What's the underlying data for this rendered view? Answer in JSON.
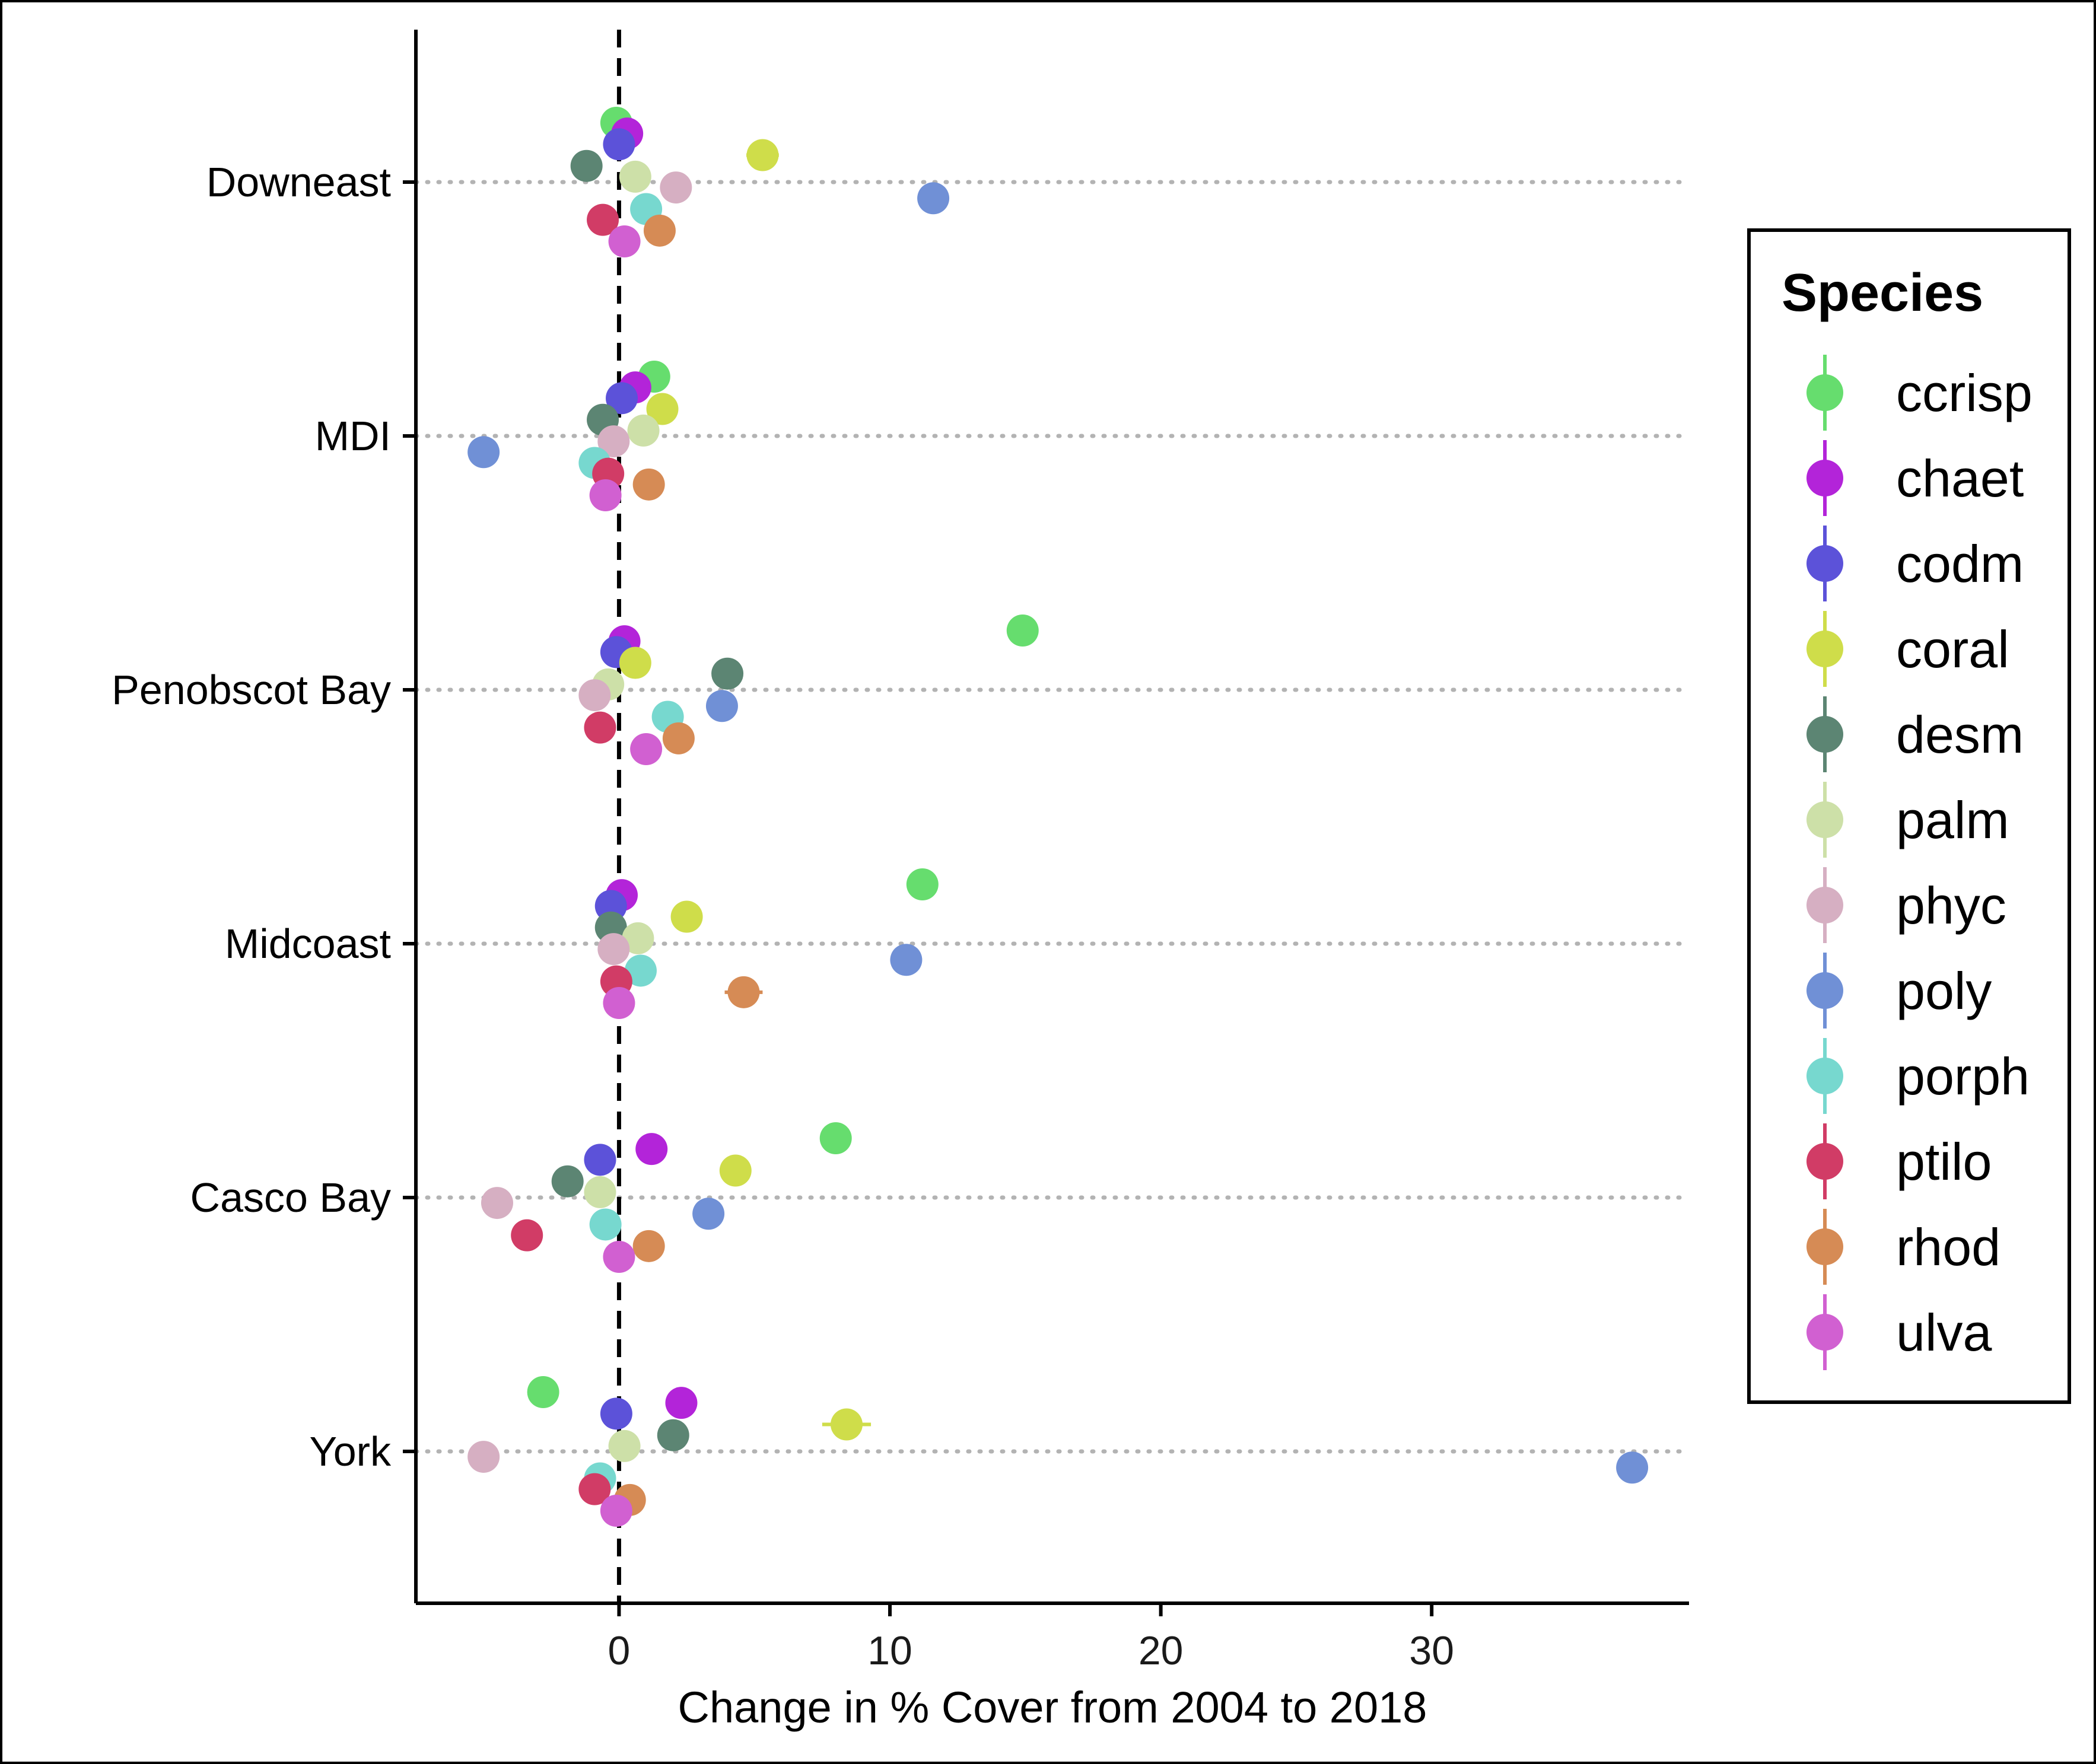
{
  "chart_data": {
    "type": "scatter",
    "xlabel": "Change in % Cover from 2004 to 2018",
    "ylabel": "",
    "xlim": [
      -7.5,
      39.5
    ],
    "x_ticks": [
      0,
      10,
      20,
      30
    ],
    "reference_line_x": 0,
    "grid": "dotted horizontal lines at each region",
    "legend": {
      "title": "Species",
      "placement": "right"
    },
    "categories": [
      "Downeast",
      "MDI",
      "Penobscot Bay",
      "Midcoast",
      "Casco Bay",
      "York"
    ],
    "series": [
      {
        "name": "ccrisp",
        "color": "#66dd6e",
        "values": [
          -0.1,
          1.3,
          14.9,
          11.2,
          8.0,
          -2.8
        ]
      },
      {
        "name": "chaet",
        "color": "#b324d9",
        "values": [
          0.3,
          0.6,
          0.2,
          0.1,
          1.2,
          2.3
        ]
      },
      {
        "name": "codm",
        "color": "#5c52d9",
        "values": [
          0.0,
          0.1,
          -0.1,
          -0.3,
          -0.7,
          -0.1
        ]
      },
      {
        "name": "coral",
        "color": "#cfdd4a",
        "values": [
          5.3,
          1.6,
          0.6,
          2.5,
          4.3,
          8.4
        ]
      },
      {
        "name": "desm",
        "color": "#5c8573",
        "values": [
          -1.2,
          -0.6,
          4.0,
          -0.3,
          -1.9,
          2.0
        ]
      },
      {
        "name": "palm",
        "color": "#cde0a8",
        "values": [
          0.6,
          0.9,
          -0.4,
          0.7,
          -0.7,
          0.2
        ]
      },
      {
        "name": "phyc",
        "color": "#d6afc2",
        "values": [
          2.1,
          -0.2,
          -0.9,
          -0.2,
          -4.5,
          -5.0
        ]
      },
      {
        "name": "poly",
        "color": "#7090d6",
        "values": [
          11.6,
          -5.0,
          3.8,
          10.6,
          3.3,
          37.4
        ]
      },
      {
        "name": "porph",
        "color": "#77d8cf",
        "values": [
          1.0,
          -0.9,
          1.8,
          0.8,
          -0.5,
          -0.7
        ]
      },
      {
        "name": "ptilo",
        "color": "#d13c66",
        "values": [
          -0.6,
          -0.4,
          -0.7,
          -0.1,
          -3.4,
          -0.9
        ]
      },
      {
        "name": "rhod",
        "color": "#d68b55",
        "values": [
          1.5,
          1.1,
          2.2,
          4.6,
          1.1,
          0.4
        ]
      },
      {
        "name": "ulva",
        "color": "#d160d1",
        "values": [
          0.2,
          -0.5,
          1.0,
          0.0,
          0.0,
          -0.1
        ]
      }
    ],
    "error_bars": [
      {
        "series": "coral",
        "category": "Downeast",
        "low": 4.7,
        "high": 5.9
      },
      {
        "series": "rhod",
        "category": "Midcoast",
        "low": 3.9,
        "high": 5.3
      },
      {
        "series": "coral",
        "category": "York",
        "low": 7.5,
        "high": 9.3
      }
    ]
  }
}
